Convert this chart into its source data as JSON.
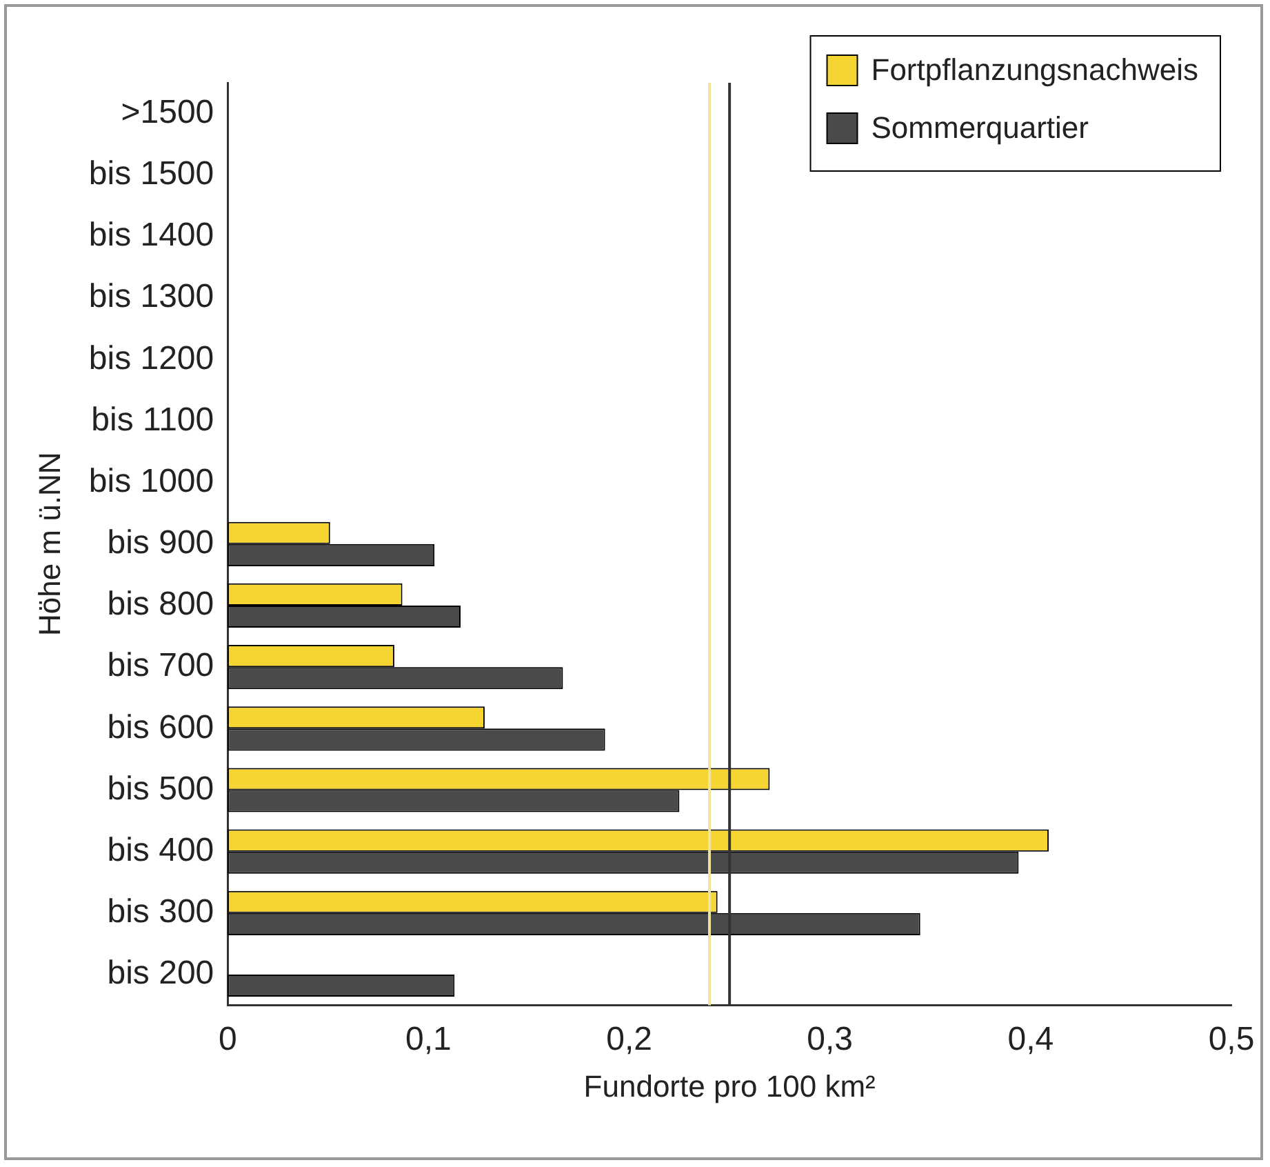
{
  "chart_data": {
    "type": "bar",
    "orientation": "horizontal",
    "xlabel": "Fundorte pro 100 km²",
    "ylabel": "Höhe m ü.NN",
    "categories": [
      ">1500",
      "bis 1500",
      "bis 1400",
      "bis 1300",
      "bis 1200",
      "bis 1100",
      "bis 1000",
      "bis 900",
      "bis 800",
      "bis 700",
      "bis 600",
      "bis 500",
      "bis 400",
      "bis 300",
      "bis 200"
    ],
    "series": [
      {
        "name": "Fortpflanzungsnachweis",
        "color": "#f5d531",
        "values": [
          null,
          null,
          null,
          null,
          null,
          null,
          null,
          0.051,
          0.087,
          0.083,
          0.128,
          0.27,
          0.409,
          0.244,
          null
        ]
      },
      {
        "name": "Sommerquartier",
        "color": "#4a4a4a",
        "values": [
          null,
          null,
          null,
          null,
          null,
          null,
          null,
          0.103,
          0.116,
          0.167,
          0.188,
          0.225,
          0.394,
          0.345,
          0.113
        ]
      }
    ],
    "xlim": [
      0,
      0.5
    ],
    "xticks": [
      0,
      {
        "value": 0.1,
        "label": "0,1"
      },
      {
        "value": 0.2,
        "label": "0,2"
      },
      {
        "value": 0.3,
        "label": "0,3"
      },
      {
        "value": 0.4,
        "label": "0,4"
      },
      {
        "value": 0.5,
        "label": "0,5"
      }
    ],
    "ref_lines": [
      {
        "axis": "x",
        "value": 0.24,
        "color": "#efe3a0"
      },
      {
        "axis": "x",
        "value": 0.25,
        "color": "#333333"
      }
    ],
    "grid": false,
    "legend": "top right"
  }
}
